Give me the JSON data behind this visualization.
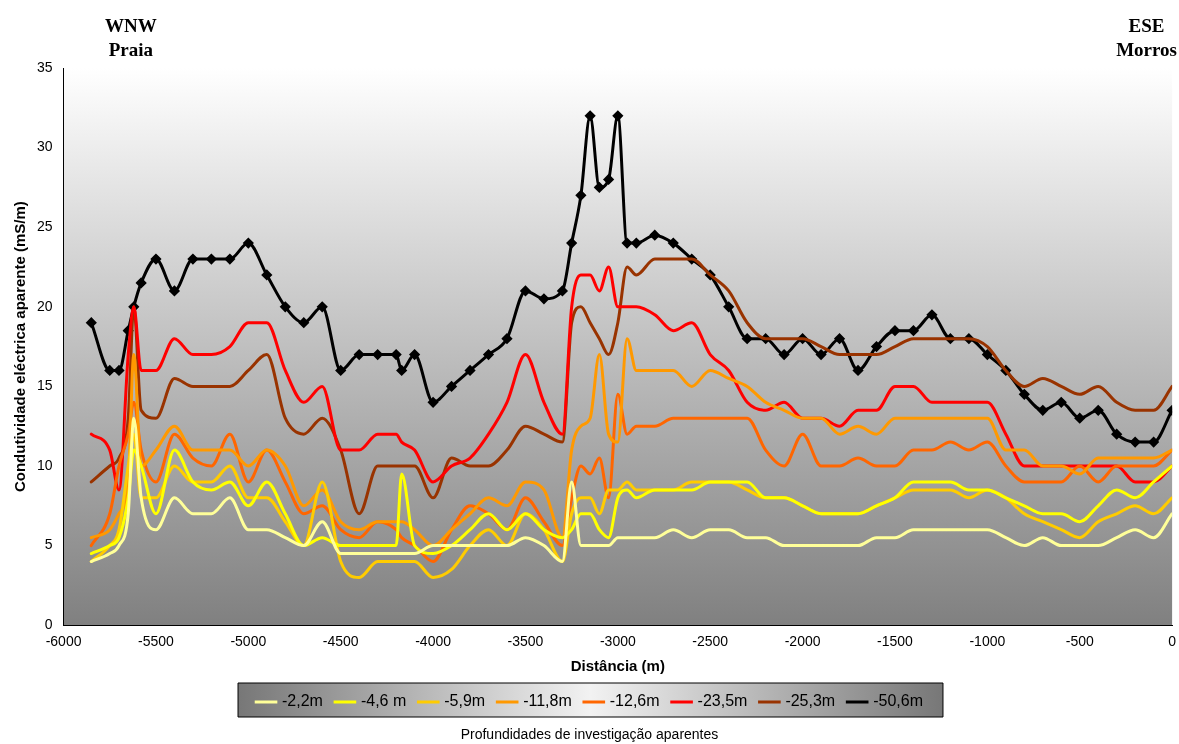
{
  "chart_data": {
    "type": "line",
    "xlabel": "Distância (m)",
    "ylabel": "Condutividade eléctrica aparente (mS/m)",
    "legend_title": "Profundidades de investigação aparentes",
    "annotations": [
      "WNW\nPraia",
      "ESE\nMorros"
    ],
    "xlim": [
      -6000,
      0
    ],
    "xticks": [
      -6000,
      -5500,
      -5000,
      -4500,
      -4000,
      -3500,
      -3000,
      -2500,
      -2000,
      -1500,
      -1000,
      -500,
      0
    ],
    "ylim": [
      0,
      35
    ],
    "yticks": [
      0,
      5,
      10,
      15,
      20,
      25,
      30,
      35
    ],
    "grid": false,
    "legend": "bottom",
    "marker": "none",
    "line_style": "solid",
    "x": [
      -5850,
      -5750,
      -5700,
      -5650,
      -5620,
      -5580,
      -5500,
      -5400,
      -5300,
      -5200,
      -5100,
      -5000,
      -4900,
      -4800,
      -4700,
      -4600,
      -4500,
      -4400,
      -4300,
      -4200,
      -4170,
      -4100,
      -4000,
      -3900,
      -3800,
      -3700,
      -3600,
      -3500,
      -3400,
      -3300,
      -3250,
      -3200,
      -3150,
      -3100,
      -3050,
      -3000,
      -2950,
      -2900,
      -2800,
      -2700,
      -2600,
      -2500,
      -2400,
      -2300,
      -2200,
      -2100,
      -2000,
      -1900,
      -1800,
      -1700,
      -1600,
      -1500,
      -1400,
      -1300,
      -1200,
      -1100,
      -1000,
      -900,
      -800,
      -700,
      -600,
      -500,
      -400,
      -300,
      -200,
      -100,
      0
    ],
    "series": [
      {
        "name": "-2,2m",
        "color": "#ffff99",
        "values": [
          4,
          4.5,
          5,
          7,
          13,
          8,
          6,
          8,
          7,
          7,
          8,
          6,
          6,
          5.5,
          5,
          6.5,
          4.5,
          4.5,
          4.5,
          4.5,
          4.5,
          4.5,
          5,
          5,
          5,
          5,
          5,
          5.5,
          5,
          4,
          9,
          5,
          5,
          5,
          5,
          5.5,
          5.5,
          5.5,
          5.5,
          6,
          5.5,
          6,
          6,
          5.5,
          5.5,
          5,
          5,
          5,
          5,
          5,
          5.5,
          5.5,
          6,
          6,
          6,
          6,
          6,
          5.5,
          5,
          5.5,
          5,
          5,
          5,
          5.5,
          6,
          5.5,
          7
        ]
      },
      {
        "name": "-4,6 m",
        "color": "#ffff00",
        "values": [
          4.5,
          5,
          5.5,
          8,
          11,
          10,
          7,
          11,
          9,
          8.5,
          9,
          7.5,
          9,
          7,
          5,
          5.5,
          5,
          5,
          5,
          5,
          9.5,
          5,
          4.5,
          5,
          6,
          7,
          6,
          7,
          6,
          5.5,
          6,
          7,
          7,
          6,
          5.5,
          8,
          8.5,
          8,
          8.5,
          8.5,
          8.5,
          9,
          9,
          9,
          8,
          8,
          7.5,
          7,
          7,
          7,
          7.5,
          8,
          9,
          9,
          9,
          8.5,
          8.5,
          8,
          7.5,
          7,
          7,
          6.5,
          7.5,
          8.5,
          8,
          9,
          10
        ]
      },
      {
        "name": "-5,9m",
        "color": "#ffcc00",
        "values": [
          4,
          5,
          6,
          10,
          12,
          8,
          8,
          10,
          9,
          9,
          10,
          8,
          8,
          6.5,
          5,
          9,
          4,
          3,
          4,
          4,
          4,
          4,
          3,
          3.5,
          5,
          6,
          5,
          7,
          6,
          4,
          7,
          8,
          8,
          7,
          8.5,
          8.5,
          9,
          8.5,
          8.5,
          8.5,
          9,
          9,
          9,
          8.5,
          8,
          8,
          7.5,
          7,
          7,
          7,
          7.5,
          8,
          8.5,
          8.5,
          8.5,
          8,
          8.5,
          8,
          7,
          6.5,
          6,
          5.5,
          6.5,
          7,
          7.5,
          7,
          8
        ]
      },
      {
        "name": "-11,8m",
        "color": "#ff9900",
        "values": [
          5.5,
          6,
          7,
          9,
          17,
          10,
          11,
          12.5,
          11,
          11,
          11,
          10,
          11,
          10,
          7.5,
          8.5,
          6.5,
          6,
          6.5,
          6.5,
          6.5,
          6,
          5,
          6,
          7,
          8,
          7.5,
          9,
          8.5,
          5.5,
          11,
          12.5,
          13,
          17,
          12,
          11.5,
          18,
          16,
          16,
          16,
          15,
          16,
          15.5,
          15,
          14,
          13.5,
          13,
          13,
          12,
          12.5,
          12,
          13,
          13,
          13,
          13,
          13,
          13,
          11,
          11,
          10,
          10,
          9.5,
          10.5,
          10.5,
          10.5,
          10.5,
          11
        ]
      },
      {
        "name": "-12,6m",
        "color": "#ff6600",
        "values": [
          5,
          7,
          10,
          12,
          14,
          11,
          9,
          12,
          10.5,
          10,
          12,
          9,
          11,
          9,
          7,
          7.5,
          6,
          5.5,
          6.5,
          6,
          5.5,
          5,
          4,
          6,
          7.5,
          7,
          6,
          8,
          6.5,
          5,
          8,
          10,
          9.5,
          10.5,
          8,
          14.5,
          12,
          12.5,
          12.5,
          13,
          13,
          13,
          13,
          13,
          11,
          10,
          12,
          10,
          10,
          10.5,
          10,
          10,
          11,
          11,
          11.5,
          11,
          11.5,
          10,
          9,
          9,
          9,
          10,
          9,
          10,
          10,
          10,
          11
        ]
      },
      {
        "name": "-23,5m",
        "color": "#ff0000",
        "values": [
          12,
          11,
          8.5,
          17,
          20,
          16,
          16,
          18,
          17,
          17,
          17.5,
          19,
          19,
          16,
          14,
          15,
          11,
          11,
          12,
          12,
          11.5,
          11,
          9,
          10,
          10.5,
          12,
          14,
          17,
          14,
          12,
          20,
          22,
          22,
          21,
          22.5,
          20,
          20,
          20,
          19.5,
          18.5,
          19,
          17,
          16,
          14,
          13.5,
          14,
          13,
          13,
          12.5,
          13.5,
          13.5,
          15,
          15,
          14,
          14,
          14,
          14,
          12,
          10,
          10,
          10,
          10,
          10,
          10,
          9,
          9,
          10
        ]
      },
      {
        "name": "-25,3m",
        "color": "#993300",
        "values": [
          9,
          10,
          10.5,
          13,
          20,
          13.5,
          13,
          15.5,
          15,
          15,
          15,
          16,
          17,
          13,
          12,
          13,
          11,
          7,
          10,
          10,
          10,
          10,
          8,
          10.5,
          10,
          10,
          11,
          12.5,
          12,
          11.5,
          19,
          20,
          19,
          18,
          17,
          19,
          22.5,
          22,
          23,
          23,
          23,
          22,
          21,
          19,
          18,
          18,
          18,
          17.5,
          17,
          17,
          17,
          17.5,
          18,
          18,
          18,
          18,
          17.5,
          16,
          15,
          15.5,
          15,
          14.5,
          15,
          14,
          13.5,
          13.5,
          15
        ]
      },
      {
        "name": "-50,6m",
        "color": "#000000",
        "marker": "diamond",
        "values": [
          19,
          16,
          16,
          18.5,
          20,
          21.5,
          23,
          21,
          23,
          23,
          23,
          24,
          22,
          20,
          19,
          20,
          16,
          17,
          17,
          17,
          16,
          17,
          14,
          15,
          16,
          17,
          18,
          21,
          20.5,
          21,
          24,
          27,
          32,
          27.5,
          28,
          32,
          24,
          24,
          24.5,
          24,
          23,
          22,
          20,
          18,
          18,
          17,
          18,
          17,
          18,
          16,
          17.5,
          18.5,
          18.5,
          19.5,
          18,
          18,
          17,
          16,
          14.5,
          13.5,
          14,
          13,
          13.5,
          12,
          11.5,
          11.5,
          13.5
        ]
      }
    ]
  }
}
